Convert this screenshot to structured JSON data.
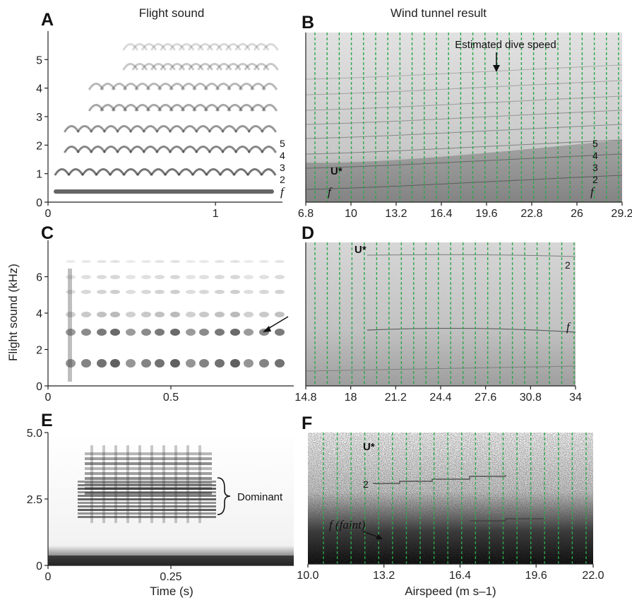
{
  "column_titles": {
    "left": "Flight sound",
    "right": "Wind tunnel result"
  },
  "panel_letters": {
    "A": "A",
    "B": "B",
    "C": "C",
    "D": "D",
    "E": "E",
    "F": "F"
  },
  "axis_titles": {
    "left_ylabel": "Flight sound (kHz)",
    "left_xlabel": "Time (s)",
    "right_xlabel": "Airspeed (m s–1)"
  },
  "annotations": {
    "estimated_dive_speed": "Estimated dive speed",
    "u_star": "U*",
    "f": "f",
    "two": "2",
    "f_faint": "f (faint)",
    "dominant": "Dominant",
    "harmonics": [
      "5",
      "4",
      "3",
      "2",
      "f"
    ]
  },
  "colors": {
    "grid_green": "#2aa84a",
    "ink": "#1a1a1a",
    "spectrogram_dark": "#151515"
  },
  "chart_data": [
    {
      "panel": "A",
      "type": "heatmap",
      "xlabel": "",
      "ylabel": "",
      "x_ticks": [
        0,
        1
      ],
      "y_ticks": [
        0,
        1,
        2,
        3,
        4,
        5
      ],
      "xlim": [
        0,
        1.4
      ],
      "ylim": [
        0,
        6
      ],
      "harmonic_labels": [
        "5",
        "4",
        "3",
        "2",
        "f"
      ]
    },
    {
      "panel": "B",
      "type": "heatmap",
      "xlabel": "",
      "ylabel": "",
      "x_ticks": [
        6.8,
        10.0,
        13.2,
        16.4,
        19.6,
        22.8,
        26.0,
        29.2
      ],
      "xlim": [
        6.8,
        29.2
      ],
      "ylim": [
        0,
        6
      ],
      "grid": "vertical dashed green",
      "annotations": [
        "Estimated dive speed",
        "U*",
        "f",
        "5",
        "4",
        "3",
        "2",
        "f"
      ]
    },
    {
      "panel": "C",
      "type": "heatmap",
      "xlabel": "",
      "ylabel": "Flight sound (kHz)",
      "x_ticks": [
        0,
        0.5
      ],
      "y_ticks": [
        0,
        2,
        4,
        6
      ],
      "xlim": [
        0,
        1.0
      ],
      "ylim": [
        0,
        8
      ]
    },
    {
      "panel": "D",
      "type": "heatmap",
      "xlabel": "",
      "ylabel": "",
      "x_ticks": [
        14.8,
        18.0,
        21.2,
        24.4,
        27.6,
        30.8,
        34.0
      ],
      "xlim": [
        14.8,
        34.0
      ],
      "ylim": [
        0,
        8
      ],
      "grid": "vertical dashed green",
      "annotations": [
        "U*",
        "2",
        "f"
      ]
    },
    {
      "panel": "E",
      "type": "heatmap",
      "xlabel": "Time (s)",
      "ylabel": "",
      "x_ticks": [
        0,
        0.25
      ],
      "y_ticks": [
        0,
        2.5,
        5.0
      ],
      "y_tick_labels": [
        "0",
        "2.5",
        "5.0"
      ],
      "xlim": [
        0,
        0.5
      ],
      "ylim": [
        0,
        5.0
      ],
      "annotations": [
        "Dominant"
      ]
    },
    {
      "panel": "F",
      "type": "heatmap",
      "xlabel": "Airspeed (m s–1)",
      "ylabel": "",
      "x_ticks": [
        10.0,
        13.2,
        16.4,
        19.6,
        22.0
      ],
      "x_tick_labels": [
        "10.0",
        "13.2",
        "16.4",
        "19.6",
        "22.0"
      ],
      "xlim": [
        10.0,
        22.0
      ],
      "ylim": [
        0,
        5.0
      ],
      "grid": "vertical dashed green",
      "annotations": [
        "U*",
        "2",
        "f (faint)"
      ]
    }
  ]
}
